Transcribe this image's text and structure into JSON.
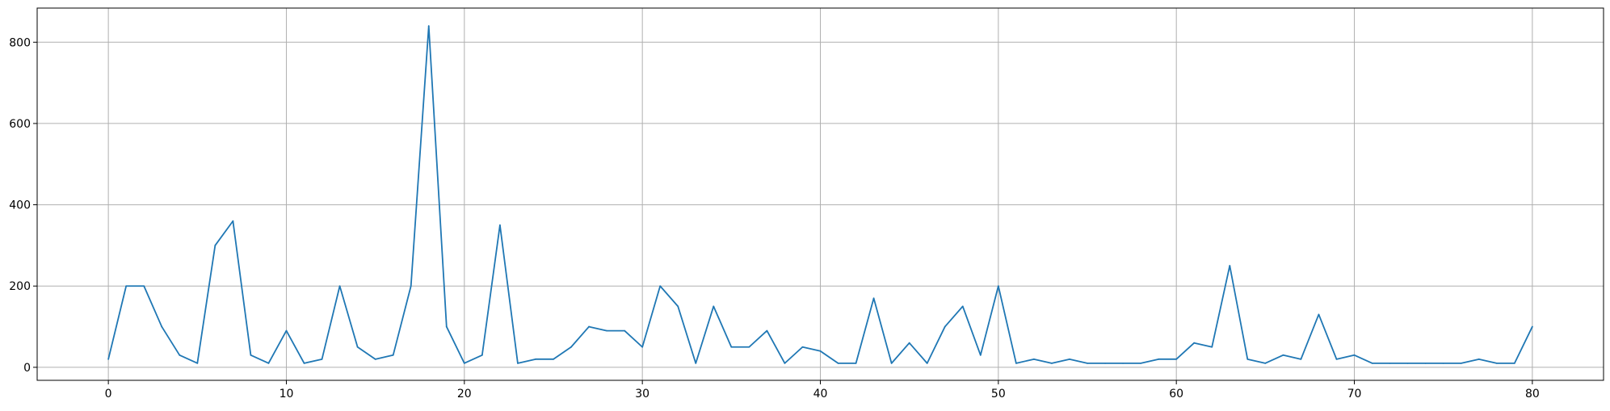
{
  "chart_data": {
    "type": "line",
    "title": "",
    "xlabel": "",
    "ylabel": "",
    "xlim": [
      -4,
      84
    ],
    "ylim": [
      -32,
      884
    ],
    "x_ticks": [
      0,
      10,
      20,
      30,
      40,
      50,
      60,
      70,
      80
    ],
    "y_ticks": [
      0,
      200,
      400,
      600,
      800
    ],
    "x_tick_labels": [
      "0",
      "10",
      "20",
      "30",
      "40",
      "50",
      "60",
      "70",
      "80"
    ],
    "y_tick_labels": [
      "0",
      "200",
      "400",
      "600",
      "800"
    ],
    "grid": true,
    "legend": "none",
    "colors": {
      "line": "#1f77b4",
      "grid": "#b0b0b0",
      "axis": "#000000"
    },
    "series": [
      {
        "x": [
          0,
          1,
          2,
          3,
          4,
          5,
          6,
          7,
          8,
          9,
          10,
          11,
          12,
          13,
          14,
          15,
          16,
          17,
          18,
          19,
          20,
          21,
          22,
          23,
          24,
          25,
          26,
          27,
          28,
          29,
          30,
          31,
          32,
          33,
          34,
          35,
          36,
          37,
          38,
          39,
          40,
          41,
          42,
          43,
          44,
          45,
          46,
          47,
          48,
          49,
          50,
          51,
          52,
          53,
          54,
          55,
          56,
          57,
          58,
          59,
          60,
          61,
          62,
          63,
          64,
          65,
          66,
          67,
          68,
          69,
          70,
          71,
          72,
          73,
          74,
          75,
          76,
          77,
          78,
          79,
          80
        ],
        "values": [
          20,
          200,
          200,
          100,
          30,
          10,
          300,
          360,
          30,
          10,
          90,
          10,
          20,
          200,
          50,
          20,
          30,
          200,
          840,
          100,
          10,
          30,
          350,
          10,
          20,
          20,
          50,
          100,
          90,
          90,
          50,
          200,
          150,
          10,
          150,
          50,
          50,
          90,
          10,
          50,
          40,
          10,
          10,
          170,
          10,
          60,
          10,
          100,
          150,
          30,
          200,
          10,
          20,
          10,
          20,
          10,
          10,
          10,
          10,
          20,
          20,
          60,
          50,
          250,
          20,
          10,
          30,
          20,
          130,
          20,
          30,
          10,
          10,
          10,
          10,
          10,
          10,
          20,
          10,
          10,
          100
        ]
      }
    ]
  }
}
